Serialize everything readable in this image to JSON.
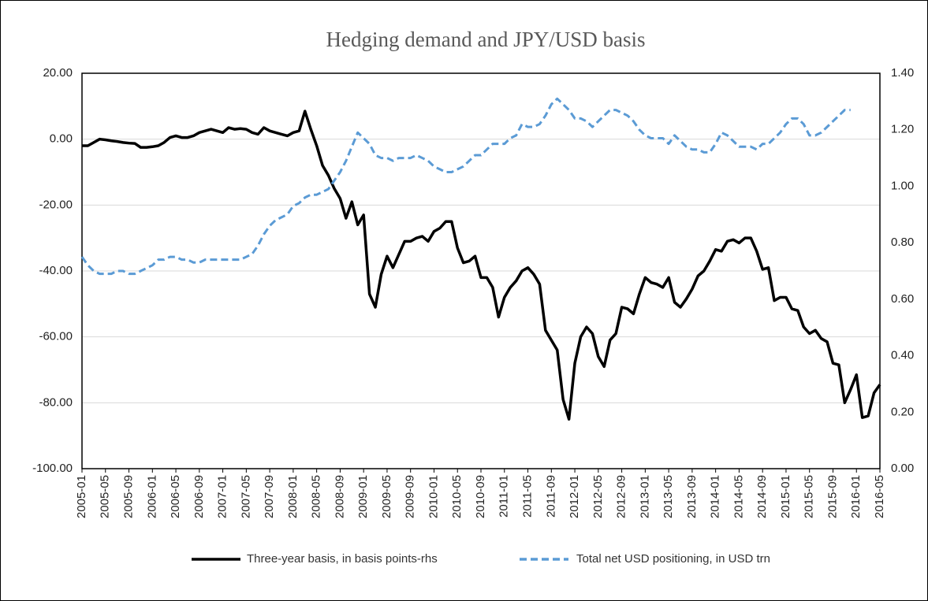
{
  "chart_data": {
    "type": "line",
    "title": "Hedging demand and JPY/USD basis",
    "categories": [
      "2005-01",
      null,
      null,
      null,
      "2005-05",
      null,
      null,
      null,
      "2005-09",
      null,
      null,
      null,
      "2006-01",
      null,
      null,
      null,
      "2006-05",
      null,
      null,
      null,
      "2006-09",
      null,
      null,
      null,
      "2007-01",
      null,
      null,
      null,
      "2007-05",
      null,
      null,
      null,
      "2007-09",
      null,
      null,
      null,
      "2008-01",
      null,
      null,
      null,
      "2008-05",
      null,
      null,
      null,
      "2008-09",
      null,
      null,
      null,
      "2009-01",
      null,
      null,
      null,
      "2009-05",
      null,
      null,
      null,
      "2009-09",
      null,
      null,
      null,
      "2010-01",
      null,
      null,
      null,
      "2010-05",
      null,
      null,
      null,
      "2010-09",
      null,
      null,
      null,
      "2011-01",
      null,
      null,
      null,
      "2011-05",
      null,
      null,
      null,
      "2011-09",
      null,
      null,
      null,
      "2012-01",
      null,
      null,
      null,
      "2012-05",
      null,
      null,
      null,
      "2012-09",
      null,
      null,
      null,
      "2013-01",
      null,
      null,
      null,
      "2013-05",
      null,
      null,
      null,
      "2013-09",
      null,
      null,
      null,
      "2014-01",
      null,
      null,
      null,
      "2014-05",
      null,
      null,
      null,
      "2014-09",
      null,
      null,
      null,
      "2015-01",
      null,
      null,
      null,
      "2015-05",
      null,
      null,
      null,
      "2015-09",
      null,
      null,
      null,
      "2016-01",
      null,
      null,
      null,
      "2016-05"
    ],
    "series": [
      {
        "name": "Three-year basis, in basis points-rhs",
        "color": "#000000",
        "dash": false,
        "axis": "y",
        "values": [
          -2,
          -2,
          -1,
          0,
          -0.2,
          -0.5,
          -0.7,
          -1,
          -1.2,
          -1.3,
          -2.5,
          -2.5,
          -2.3,
          -2,
          -1,
          0.5,
          1,
          0.5,
          0.5,
          1,
          2,
          2.5,
          3,
          2.5,
          2,
          3.5,
          3,
          3.2,
          3,
          2,
          1.5,
          3.5,
          2.5,
          2,
          1.5,
          1,
          2,
          2.5,
          8.5,
          3,
          -2,
          -8,
          -11,
          -15,
          -18,
          -24,
          -19,
          -26,
          -23,
          -47,
          -51,
          -41,
          -35.5,
          -39,
          -35,
          -31,
          -31,
          -30,
          -29.5,
          -31,
          -28,
          -27,
          -25,
          -25,
          -33,
          -37.5,
          -37,
          -35.5,
          -42,
          -42,
          -45,
          -54,
          -48,
          -45,
          -43,
          -40,
          -39,
          -41,
          -44,
          -58,
          -61,
          -64,
          -79,
          -85,
          -68,
          -60,
          -57,
          -59,
          -66,
          -69,
          -61,
          -59,
          -51,
          -51.5,
          -53,
          -47,
          -42,
          -43.5,
          -44,
          -45,
          -42,
          -49.5,
          -51,
          -48.5,
          -45.5,
          -41.5,
          -40,
          -37,
          -33.5,
          -34,
          -31,
          -30.5,
          -31.5,
          -30,
          -30,
          -34,
          -39.5,
          -39,
          -49,
          -48,
          -48,
          -51.5,
          -52,
          -57,
          -59,
          -58,
          -60.5,
          -61.5,
          -68,
          -68.5,
          -80,
          -76,
          -71.5,
          -84.5,
          -84,
          -77,
          -74.5
        ]
      },
      {
        "name": "Total net USD positioning, in USD trn",
        "color": "#5b9bd5",
        "dash": true,
        "axis": "y2",
        "values": [
          0.75,
          0.72,
          0.7,
          0.69,
          0.69,
          0.69,
          0.7,
          0.7,
          0.69,
          0.69,
          0.7,
          0.71,
          0.72,
          0.74,
          0.74,
          0.75,
          0.75,
          0.74,
          0.74,
          0.73,
          0.73,
          0.74,
          0.74,
          0.74,
          0.74,
          0.74,
          0.74,
          0.74,
          0.75,
          0.76,
          0.79,
          0.83,
          0.86,
          0.88,
          0.89,
          0.9,
          0.93,
          0.94,
          0.96,
          0.97,
          0.97,
          0.98,
          0.99,
          1.02,
          1.05,
          1.09,
          1.14,
          1.19,
          1.17,
          1.15,
          1.11,
          1.1,
          1.1,
          1.09,
          1.1,
          1.1,
          1.1,
          1.11,
          1.1,
          1.09,
          1.07,
          1.06,
          1.05,
          1.05,
          1.06,
          1.07,
          1.09,
          1.11,
          1.11,
          1.13,
          1.15,
          1.15,
          1.15,
          1.17,
          1.18,
          1.22,
          1.21,
          1.21,
          1.22,
          1.25,
          1.29,
          1.31,
          1.29,
          1.27,
          1.24,
          1.24,
          1.23,
          1.21,
          1.23,
          1.25,
          1.27,
          1.27,
          1.26,
          1.25,
          1.23,
          1.2,
          1.18,
          1.17,
          1.17,
          1.17,
          1.15,
          1.18,
          1.16,
          1.14,
          1.13,
          1.13,
          1.12,
          1.12,
          1.15,
          1.19,
          1.18,
          1.16,
          1.14,
          1.14,
          1.14,
          1.13,
          1.15,
          1.15,
          1.17,
          1.19,
          1.22,
          1.24,
          1.24,
          1.22,
          1.18,
          1.18,
          1.19,
          1.21,
          1.23,
          1.25,
          1.27,
          1.27,
          null,
          null,
          null,
          null,
          null
        ]
      }
    ],
    "ylim": [
      -100,
      20
    ],
    "yticks": [
      {
        "value": -100,
        "label": "-100.00"
      },
      {
        "value": -80,
        "label": "-80.00"
      },
      {
        "value": -60,
        "label": "-60.00"
      },
      {
        "value": -40,
        "label": "-40.00"
      },
      {
        "value": -20,
        "label": "-20.00"
      },
      {
        "value": 0,
        "label": "0.00"
      },
      {
        "value": 20,
        "label": "20.00"
      }
    ],
    "y2lim": [
      0,
      1.4
    ],
    "y2ticks": [
      {
        "value": 0,
        "label": "0.00"
      },
      {
        "value": 0.2,
        "label": "0.20"
      },
      {
        "value": 0.4,
        "label": "0.40"
      },
      {
        "value": 0.6,
        "label": "0.60"
      },
      {
        "value": 0.8,
        "label": "0.80"
      },
      {
        "value": 1.0,
        "label": "1.00"
      },
      {
        "value": 1.2,
        "label": "1.20"
      },
      {
        "value": 1.4,
        "label": "1.40"
      }
    ],
    "grid": true,
    "legend": "bottom"
  }
}
